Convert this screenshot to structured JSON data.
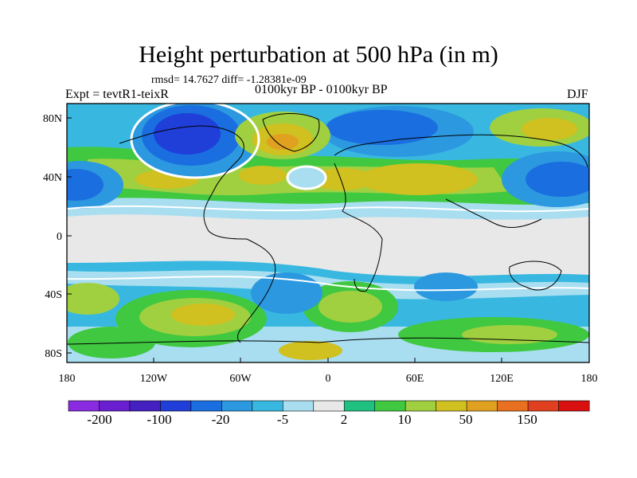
{
  "title": "Height perturbation at 500 hPa (in m)",
  "stats_line": "rmsd= 14.7627 diff= -1.28381e-09",
  "experiment": "Expt = tevtR1-teixR",
  "period": "0100kyr BP - 0100kyr BP",
  "season": "DJF",
  "y_axis_labels": [
    "80N",
    "40N",
    "0",
    "40S",
    "80S"
  ],
  "x_axis_labels": [
    "180",
    "120W",
    "60W",
    "0",
    "60E",
    "120E",
    "180"
  ],
  "colorbar": {
    "colors": [
      "#8a2be2",
      "#6a1fd0",
      "#4420c0",
      "#1f3fd8",
      "#1a6ee0",
      "#2c98e0",
      "#38b8e0",
      "#a8def0",
      "#e8e8e8",
      "#20c080",
      "#40c840",
      "#a0d040",
      "#d0c020",
      "#e0a020",
      "#e87020",
      "#e04020",
      "#d81010"
    ],
    "labels": [
      "-200",
      "-100",
      "-20",
      "-5",
      "2",
      "10",
      "50",
      "150"
    ]
  },
  "palette": {
    "white": "#e8e8e8",
    "lightcyan": "#a8def0",
    "cyan": "#38b8e0",
    "lightblue": "#2c98e0",
    "blue": "#1a6ee0",
    "darkblue": "#1f3fd8",
    "green": "#40c840",
    "lightgreen": "#a0d040",
    "yellow": "#d0c020",
    "orange": "#e0a020"
  }
}
